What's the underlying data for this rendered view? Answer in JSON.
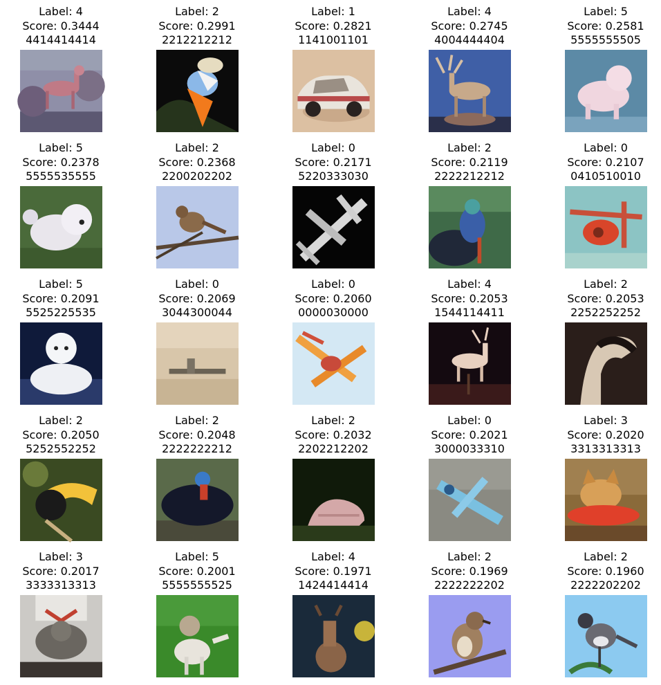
{
  "items": [
    {
      "label": "Label: 4",
      "score": "Score: 0.3444",
      "preds": "4414414414",
      "subject": "deer-photo"
    },
    {
      "label": "Label: 2",
      "score": "Score: 0.2991",
      "preds": "2212212212",
      "subject": "bird-photo"
    },
    {
      "label": "Label: 1",
      "score": "Score: 0.2821",
      "preds": "1141001101",
      "subject": "car-photo"
    },
    {
      "label": "Label: 4",
      "score": "Score: 0.2745",
      "preds": "4004444404",
      "subject": "deer-figurine-photo"
    },
    {
      "label": "Label: 5",
      "score": "Score: 0.2581",
      "preds": "5555555505",
      "subject": "dog-photo"
    },
    {
      "label": "Label: 5",
      "score": "Score: 0.2378",
      "preds": "5555535555",
      "subject": "dog-photo"
    },
    {
      "label": "Label: 2",
      "score": "Score: 0.2368",
      "preds": "2200202202",
      "subject": "bird-photo"
    },
    {
      "label": "Label: 0",
      "score": "Score: 0.2171",
      "preds": "5220333030",
      "subject": "airplane-photo"
    },
    {
      "label": "Label: 2",
      "score": "Score: 0.2119",
      "preds": "2222212212",
      "subject": "bird-photo"
    },
    {
      "label": "Label: 0",
      "score": "Score: 0.2107",
      "preds": "0410510010",
      "subject": "airplane-photo"
    },
    {
      "label": "Label: 5",
      "score": "Score: 0.2091",
      "preds": "5525225535",
      "subject": "dog-photo"
    },
    {
      "label": "Label: 0",
      "score": "Score: 0.2069",
      "preds": "3044300044",
      "subject": "airplane-photo"
    },
    {
      "label": "Label: 0",
      "score": "Score: 0.2060",
      "preds": "0000030000",
      "subject": "airplane-photo"
    },
    {
      "label": "Label: 4",
      "score": "Score: 0.2053",
      "preds": "1544114411",
      "subject": "deer-figurine-photo"
    },
    {
      "label": "Label: 2",
      "score": "Score: 0.2053",
      "preds": "2252252252",
      "subject": "bird-photo"
    },
    {
      "label": "Label: 2",
      "score": "Score: 0.2050",
      "preds": "5252552252",
      "subject": "bird-photo"
    },
    {
      "label": "Label: 2",
      "score": "Score: 0.2048",
      "preds": "2222222212",
      "subject": "bird-photo"
    },
    {
      "label": "Label: 2",
      "score": "Score: 0.2032",
      "preds": "2202212202",
      "subject": "bird-photo"
    },
    {
      "label": "Label: 0",
      "score": "Score: 0.2021",
      "preds": "3000033310",
      "subject": "airplane-photo"
    },
    {
      "label": "Label: 3",
      "score": "Score: 0.2020",
      "preds": "3313313313",
      "subject": "cat-photo"
    },
    {
      "label": "Label: 3",
      "score": "Score: 0.2017",
      "preds": "3333313313",
      "subject": "cat-photo"
    },
    {
      "label": "Label: 5",
      "score": "Score: 0.2001",
      "preds": "5555555525",
      "subject": "dog-photo"
    },
    {
      "label": "Label: 4",
      "score": "Score: 0.1971",
      "preds": "1424414414",
      "subject": "deer-photo"
    },
    {
      "label": "Label: 2",
      "score": "Score: 0.1969",
      "preds": "2222222202",
      "subject": "bird-photo"
    },
    {
      "label": "Label: 2",
      "score": "Score: 0.1960",
      "preds": "2222202202",
      "subject": "bird-photo"
    }
  ]
}
